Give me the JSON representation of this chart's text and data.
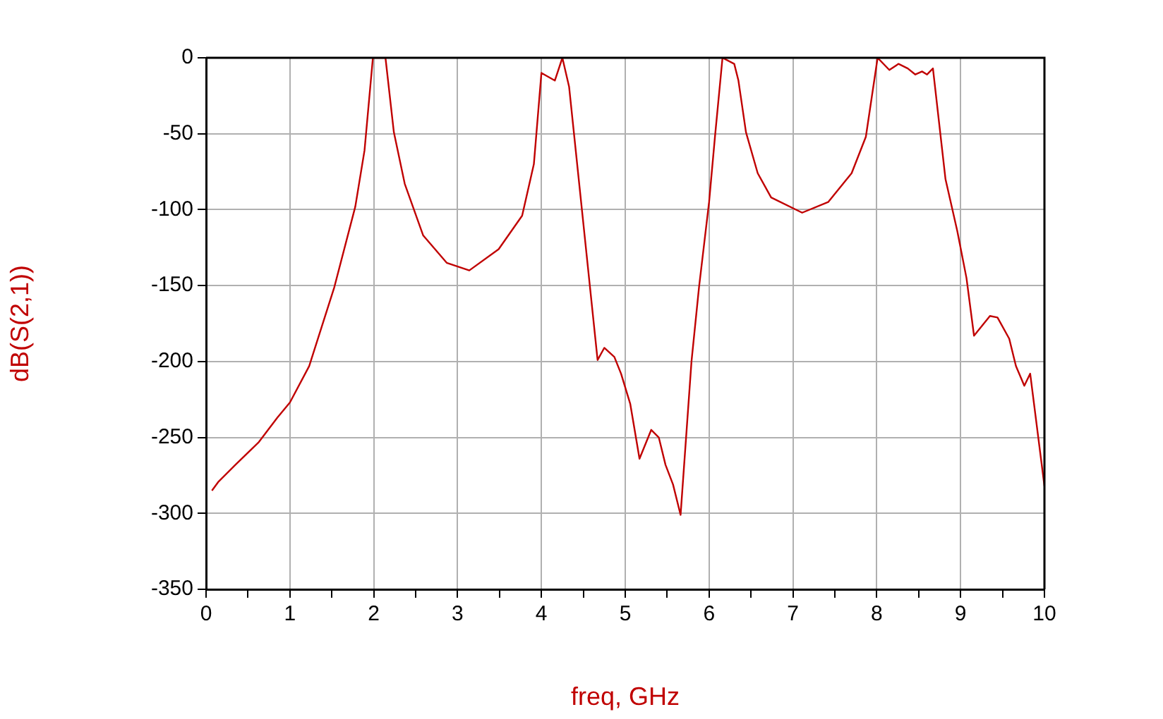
{
  "chart_data": {
    "type": "line",
    "xlabel": "freq, GHz",
    "ylabel": "dB(S(2,1))",
    "series": [
      {
        "color": "#c00000",
        "x": [
          0.07,
          0.15,
          0.35,
          0.63,
          0.85,
          1.0,
          1.23,
          1.53,
          1.78,
          1.89,
          1.99,
          2.14,
          2.24,
          2.37,
          2.59,
          2.87,
          3.14,
          3.49,
          3.77,
          3.91,
          4.0,
          4.16,
          4.25,
          4.33,
          4.67,
          4.75,
          4.87,
          4.95,
          5.06,
          5.17,
          5.31,
          5.4,
          5.48,
          5.57,
          5.66,
          5.79,
          5.88,
          6.0,
          6.07,
          6.16,
          6.3,
          6.35,
          6.44,
          6.58,
          6.74,
          7.11,
          7.42,
          7.7,
          7.87,
          8.01,
          8.15,
          8.26,
          8.37,
          8.46,
          8.54,
          8.6,
          8.67,
          8.82,
          8.96,
          9.07,
          9.16,
          9.35,
          9.44,
          9.58,
          9.66,
          9.76,
          9.83,
          10.0
        ],
        "values": [
          -285,
          -279,
          -268,
          -253,
          -237,
          -227,
          -203,
          -151,
          -98,
          -61,
          0,
          0,
          -49,
          -83,
          -117,
          -135,
          -140,
          -126,
          -104,
          -70,
          -10,
          -15,
          0,
          -19,
          -199,
          -191,
          -197,
          -208,
          -228,
          -264,
          -245,
          -250,
          -268,
          -281,
          -301,
          -200,
          -151,
          -95,
          -52,
          0,
          -4,
          -15,
          -49,
          -76,
          -92,
          -102,
          -95,
          -76,
          -52,
          0,
          -8,
          -4,
          -7,
          -11,
          -9,
          -11,
          -7,
          -80,
          -114,
          -145,
          -183,
          -170,
          -171,
          -185,
          -203,
          -216,
          -208,
          -282
        ]
      }
    ],
    "xlim": [
      0,
      10
    ],
    "xticks": [
      0,
      {
        "value": 0.5,
        "label": null
      },
      1,
      {
        "value": 1.5,
        "label": null
      },
      2,
      {
        "value": 2.5,
        "label": null
      },
      3,
      {
        "value": 3.5,
        "label": null
      },
      4,
      {
        "value": 4.5,
        "label": null
      },
      5,
      {
        "value": 5.5,
        "label": null
      },
      6,
      {
        "value": 6.5,
        "label": null
      },
      7,
      {
        "value": 7.5,
        "label": null
      },
      8,
      {
        "value": 8.5,
        "label": null
      },
      9,
      {
        "value": 9.5,
        "label": null
      },
      10
    ],
    "ylim": [
      -350,
      0
    ],
    "yticks": [
      -350,
      -300,
      -250,
      -200,
      -150,
      -100,
      -50,
      0
    ],
    "grid": true,
    "legend": false,
    "marker": "none",
    "line_style": "solid"
  }
}
